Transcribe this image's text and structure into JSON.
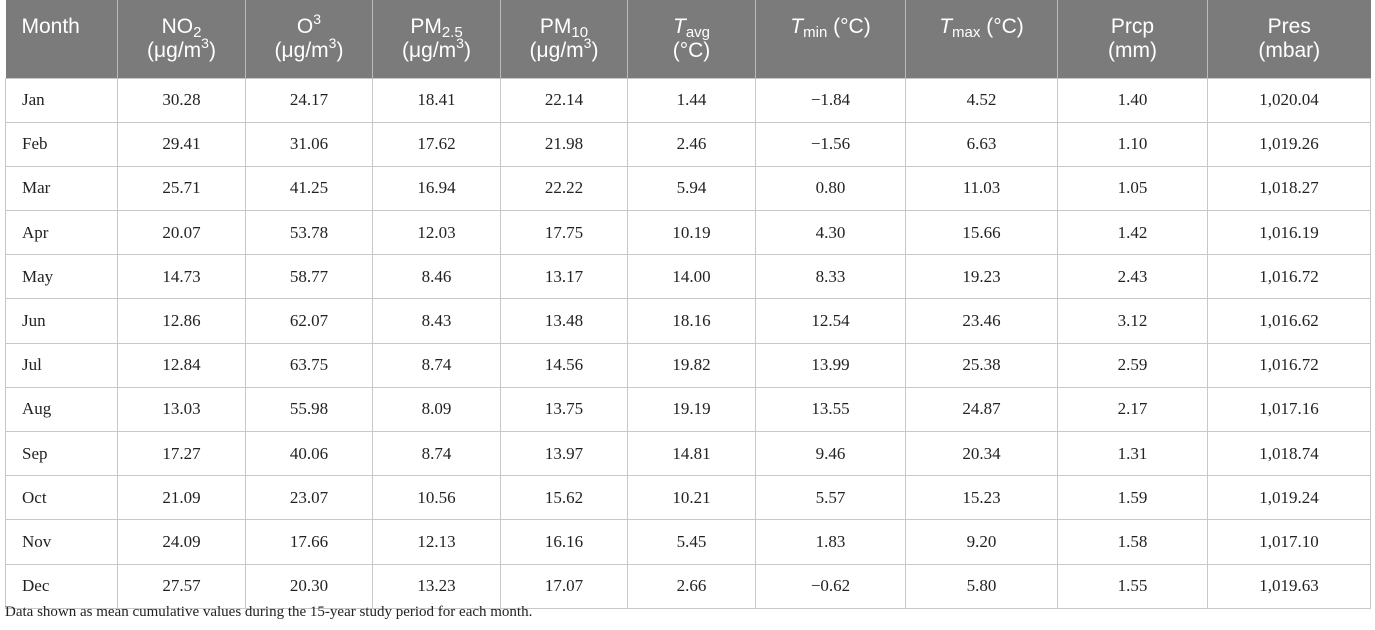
{
  "table": {
    "header": [
      [
        [
          {
            "text": "Month"
          }
        ]
      ],
      [
        [
          {
            "text": "NO"
          },
          {
            "text": "2",
            "style": "sub"
          }
        ],
        [
          {
            "text": "(μg/m"
          },
          {
            "text": "3",
            "style": "sup"
          },
          {
            "text": ")"
          }
        ]
      ],
      [
        [
          {
            "text": "O"
          },
          {
            "text": "3",
            "style": "sup"
          }
        ],
        [
          {
            "text": "(μg/m"
          },
          {
            "text": "3",
            "style": "sup"
          },
          {
            "text": ")"
          }
        ]
      ],
      [
        [
          {
            "text": "PM"
          },
          {
            "text": "2.5",
            "style": "sub"
          }
        ],
        [
          {
            "text": "(μg/m"
          },
          {
            "text": "3",
            "style": "sup"
          },
          {
            "text": ")"
          }
        ]
      ],
      [
        [
          {
            "text": "PM"
          },
          {
            "text": "10",
            "style": "sub"
          }
        ],
        [
          {
            "text": "(μg/m"
          },
          {
            "text": "3",
            "style": "sup"
          },
          {
            "text": ")"
          }
        ]
      ],
      [
        [
          {
            "text": "T",
            "style": "italic"
          },
          {
            "text": "avg",
            "style": "sub"
          }
        ],
        [
          {
            "text": "(°C)"
          }
        ]
      ],
      [
        [
          {
            "text": "T",
            "style": "italic"
          },
          {
            "text": "min",
            "style": "sub"
          },
          {
            "text": " (°C)"
          }
        ]
      ],
      [
        [
          {
            "text": "T",
            "style": "italic"
          },
          {
            "text": "max",
            "style": "sub"
          },
          {
            "text": " (°C)"
          }
        ]
      ],
      [
        [
          {
            "text": "Prcp"
          }
        ],
        [
          {
            "text": "(mm)"
          }
        ]
      ],
      [
        [
          {
            "text": "Pres"
          }
        ],
        [
          {
            "text": "(mbar)"
          }
        ]
      ]
    ],
    "rows": [
      [
        "Jan",
        "30.28",
        "24.17",
        "18.41",
        "22.14",
        "1.44",
        "−1.84",
        "4.52",
        "1.40",
        "1,020.04"
      ],
      [
        "Feb",
        "29.41",
        "31.06",
        "17.62",
        "21.98",
        "2.46",
        "−1.56",
        "6.63",
        "1.10",
        "1,019.26"
      ],
      [
        "Mar",
        "25.71",
        "41.25",
        "16.94",
        "22.22",
        "5.94",
        "0.80",
        "11.03",
        "1.05",
        "1,018.27"
      ],
      [
        "Apr",
        "20.07",
        "53.78",
        "12.03",
        "17.75",
        "10.19",
        "4.30",
        "15.66",
        "1.42",
        "1,016.19"
      ],
      [
        "May",
        "14.73",
        "58.77",
        "8.46",
        "13.17",
        "14.00",
        "8.33",
        "19.23",
        "2.43",
        "1,016.72"
      ],
      [
        "Jun",
        "12.86",
        "62.07",
        "8.43",
        "13.48",
        "18.16",
        "12.54",
        "23.46",
        "3.12",
        "1,016.62"
      ],
      [
        "Jul",
        "12.84",
        "63.75",
        "8.74",
        "14.56",
        "19.82",
        "13.99",
        "25.38",
        "2.59",
        "1,016.72"
      ],
      [
        "Aug",
        "13.03",
        "55.98",
        "8.09",
        "13.75",
        "19.19",
        "13.55",
        "24.87",
        "2.17",
        "1,017.16"
      ],
      [
        "Sep",
        "17.27",
        "40.06",
        "8.74",
        "13.97",
        "14.81",
        "9.46",
        "20.34",
        "1.31",
        "1,018.74"
      ],
      [
        "Oct",
        "21.09",
        "23.07",
        "10.56",
        "15.62",
        "10.21",
        "5.57",
        "15.23",
        "1.59",
        "1,019.24"
      ],
      [
        "Nov",
        "24.09",
        "17.66",
        "12.13",
        "16.16",
        "5.45",
        "1.83",
        "9.20",
        "1.58",
        "1,017.10"
      ],
      [
        "Dec",
        "27.57",
        "20.30",
        "13.23",
        "17.07",
        "2.66",
        "−0.62",
        "5.80",
        "1.55",
        "1,019.63"
      ]
    ]
  },
  "footnote": "Data shown as mean cumulative values during the 15-year study period for each month."
}
